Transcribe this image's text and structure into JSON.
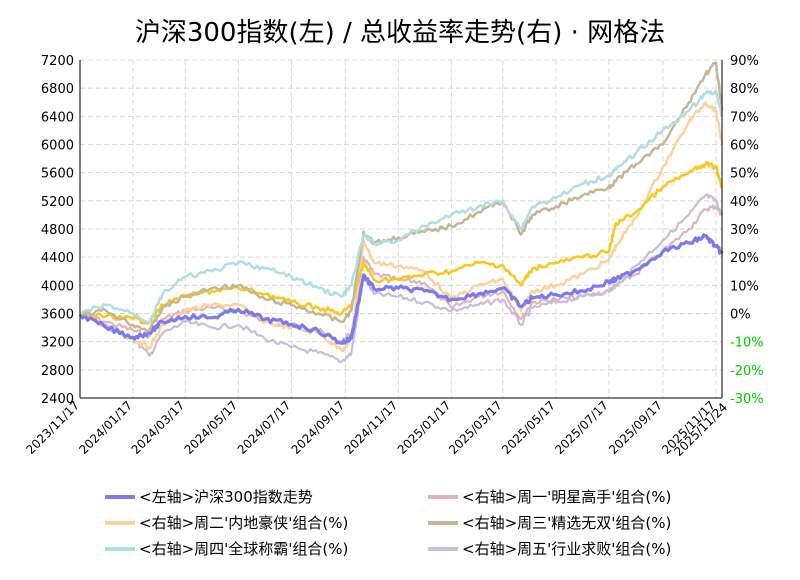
{
  "chart_data": {
    "type": "line",
    "title": "沪深300指数(左) / 总收益率走势(右) · 网格法",
    "left_axis": {
      "ticks": [
        "7200",
        "6800",
        "6400",
        "6000",
        "5600",
        "5200",
        "4800",
        "4400",
        "4000",
        "3600",
        "3200",
        "2800",
        "2400"
      ],
      "range": [
        2400,
        7200
      ]
    },
    "right_axis": {
      "ticks": [
        "90%",
        "80%",
        "70%",
        "60%",
        "50%",
        "40%",
        "30%",
        "20%",
        "10%",
        "0%",
        "-10%",
        "-20%",
        "-30%"
      ],
      "range": [
        -30,
        90
      ],
      "positive_color": "#000000",
      "negative_color": "#00cc00"
    },
    "x_ticks": [
      "2023/11/17",
      "2024/01/17",
      "2024/03/17",
      "2024/05/17",
      "2024/07/17",
      "2024/09/17",
      "2024/11/17",
      "2025/01/17",
      "2025/03/17",
      "2025/05/17",
      "2025/07/17",
      "2025/09/17",
      "2025/11/17"
    ],
    "x_end_label": "2025/11/24",
    "x_end_color": "#ff0000",
    "grid": true,
    "legend_position": "bottom",
    "x_dates": [
      "2023/11/17",
      "2023/12/17",
      "2024/01/17",
      "2024/02/05",
      "2024/02/20",
      "2024/03/17",
      "2024/04/17",
      "2024/05/17",
      "2024/06/17",
      "2024/07/17",
      "2024/08/17",
      "2024/09/13",
      "2024/09/24",
      "2024/10/08",
      "2024/10/20",
      "2024/11/17",
      "2024/12/17",
      "2025/01/17",
      "2025/02/17",
      "2025/03/17",
      "2025/04/07",
      "2025/04/20",
      "2025/05/17",
      "2025/06/17",
      "2025/07/17",
      "2025/07/25",
      "2025/08/17",
      "2025/09/17",
      "2025/10/17",
      "2025/11/05",
      "2025/11/17",
      "2025/11/24"
    ],
    "series": [
      {
        "name": "<左轴>沪深300指数走势",
        "axis": "left",
        "color": "#7b7bef",
        "width": 3.2,
        "values": [
          3590,
          3400,
          3260,
          3330,
          3480,
          3560,
          3540,
          3660,
          3520,
          3450,
          3350,
          3180,
          3250,
          4150,
          3950,
          3960,
          3920,
          3800,
          3880,
          3960,
          3700,
          3820,
          3870,
          3920,
          4050,
          4080,
          4220,
          4480,
          4600,
          4700,
          4550,
          4450
        ]
      },
      {
        "name": "<右轴>周一'明星高手'组合(%)",
        "axis": "right",
        "color": "#e3b4b7",
        "width": 2.2,
        "values": [
          0,
          -3,
          -6,
          -8,
          -2,
          1,
          2,
          1,
          -3,
          -4,
          -6,
          -10,
          -7,
          20,
          14,
          12,
          11,
          2,
          6,
          8,
          -2,
          4,
          5,
          6,
          8,
          10,
          14,
          22,
          30,
          37,
          38,
          35
        ]
      },
      {
        "name": "<右轴>周二'内地豪侠'组合(%)",
        "axis": "right",
        "color": "#fcd29c",
        "width": 2.5,
        "values": [
          0,
          -5,
          -9,
          -12,
          -4,
          1,
          3,
          3,
          -3,
          -5,
          -7,
          -13,
          -9,
          26,
          18,
          17,
          15,
          5,
          10,
          12,
          1,
          8,
          10,
          14,
          19,
          24,
          34,
          52,
          68,
          75,
          72,
          60
        ]
      },
      {
        "name": "<右轴>周三'精选无双'组合(%)",
        "axis": "right",
        "color": "#c5b794",
        "width": 2.5,
        "values": [
          0,
          1,
          -4,
          -6,
          2,
          6,
          9,
          10,
          5,
          3,
          0,
          -3,
          1,
          29,
          25,
          27,
          29,
          31,
          36,
          40,
          28,
          35,
          38,
          42,
          45,
          47,
          53,
          60,
          75,
          85,
          89,
          72
        ]
      },
      {
        "name": "<右轴>周四'全球称霸'组合(%)",
        "axis": "right",
        "color": "#b0dfe3",
        "width": 2.5,
        "values": [
          0,
          3,
          0,
          -3,
          7,
          13,
          15,
          18,
          16,
          13,
          9,
          6,
          10,
          28,
          25,
          26,
          31,
          35,
          38,
          40,
          30,
          38,
          41,
          46,
          49,
          51,
          57,
          65,
          72,
          78,
          79,
          70
        ]
      },
      {
        "name": "<右轴>周五'行业求败'组合(%)",
        "axis": "right",
        "color": "#c7bddd",
        "width": 2.2,
        "values": [
          0,
          -4,
          -9,
          -15,
          -7,
          -3,
          -5,
          -4,
          -9,
          -12,
          -14,
          -17,
          -14,
          13,
          7,
          6,
          4,
          1,
          3,
          5,
          -4,
          2,
          4,
          6,
          8,
          10,
          17,
          26,
          35,
          42,
          40,
          35
        ]
      },
      {
        "name": "",
        "axis": "right",
        "color": "#f8c81e",
        "width": 2.6,
        "values": [
          0,
          -1,
          -2,
          -3,
          3,
          6,
          8,
          9,
          7,
          4,
          2,
          0,
          3,
          18,
          12,
          12,
          14,
          15,
          18,
          17,
          10,
          16,
          18,
          20,
          22,
          32,
          36,
          45,
          50,
          53,
          52,
          45
        ]
      }
    ]
  }
}
